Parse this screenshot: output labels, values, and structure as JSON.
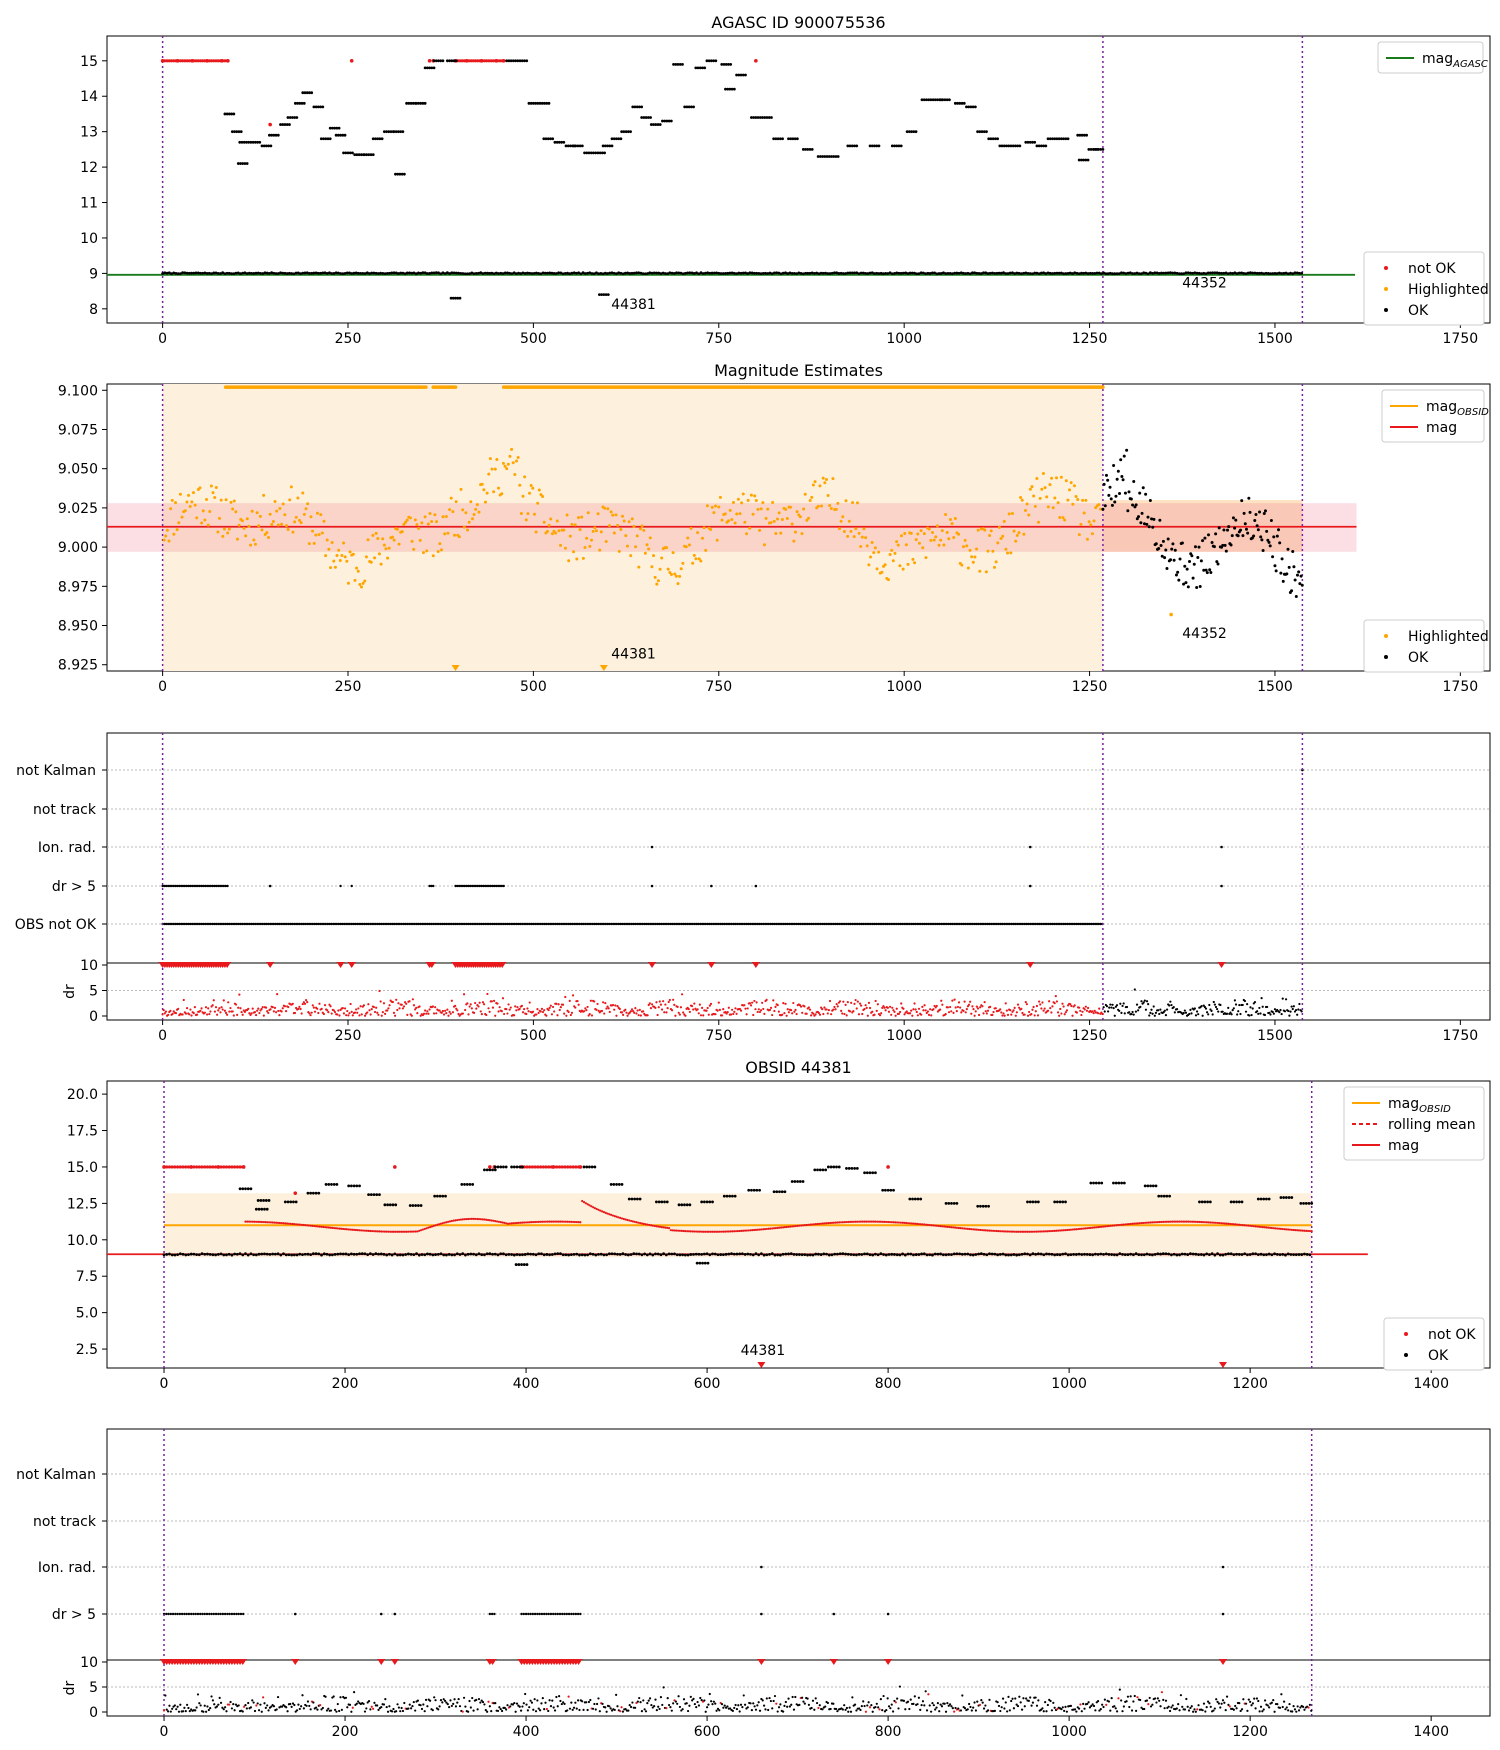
{
  "chart_data": [
    {
      "type": "scatter",
      "title": "AGASC ID 900075536",
      "xlim": [
        -75,
        1790
      ],
      "ylim": [
        7.6,
        15.7
      ],
      "xticks": [
        "0",
        "250",
        "500",
        "750",
        "1000",
        "1250",
        "1500",
        "1750"
      ],
      "yticks": [
        "8",
        "9",
        "10",
        "11",
        "12",
        "13",
        "14",
        "15"
      ],
      "vlines": [
        0,
        1268,
        1537
      ],
      "reference_line": {
        "name": "mag",
        "subscript": "AGASC",
        "value": 8.96,
        "color": "#1a7a1a"
      },
      "series": [
        {
          "name": "not OK",
          "color": "#e8191c",
          "points": [
            [
              0,
              15
            ],
            [
              20,
              15
            ],
            [
              40,
              15
            ],
            [
              60,
              15
            ],
            [
              80,
              15
            ],
            [
              88,
              15
            ],
            [
              145,
              13.2
            ],
            [
              255,
              15
            ],
            [
              360,
              15
            ],
            [
              365,
              15
            ],
            [
              395,
              15
            ],
            [
              410,
              15
            ],
            [
              430,
              15
            ],
            [
              450,
              15
            ],
            [
              460,
              15
            ],
            [
              800,
              15
            ]
          ]
        },
        {
          "name": "Highlighted",
          "color": "#ffa500",
          "points": []
        },
        {
          "name": "OK",
          "color": "#000000",
          "segments": [
            [
              0,
              1268,
              9.01
            ],
            [
              1268,
              1537,
              9.01
            ]
          ],
          "points": [
            [
              90,
              13.5
            ],
            [
              100,
              13.0
            ],
            [
              110,
              12.7
            ],
            [
              125,
              12.7
            ],
            [
              140,
              12.6
            ],
            [
              150,
              12.9
            ],
            [
              165,
              13.2
            ],
            [
              175,
              13.4
            ],
            [
              185,
              13.8
            ],
            [
              195,
              14.1
            ],
            [
              210,
              13.7
            ],
            [
              220,
              12.8
            ],
            [
              232,
              13.1
            ],
            [
              240,
              12.9
            ],
            [
              250,
              12.4
            ],
            [
              265,
              12.35
            ],
            [
              278,
              12.35
            ],
            [
              290,
              12.8
            ],
            [
              305,
              13.0
            ],
            [
              318,
              13.0
            ],
            [
              335,
              13.8
            ],
            [
              348,
              13.8
            ],
            [
              360,
              14.8
            ],
            [
              372,
              15.0
            ],
            [
              390,
              15.0
            ],
            [
              470,
              15.0
            ],
            [
              485,
              15.0
            ],
            [
              500,
              13.8
            ],
            [
              515,
              13.8
            ],
            [
              520,
              12.8
            ],
            [
              535,
              12.7
            ],
            [
              550,
              12.6
            ],
            [
              560,
              12.6
            ],
            [
              575,
              12.4
            ],
            [
              590,
              12.4
            ],
            [
              600,
              12.6
            ],
            [
              612,
              12.8
            ],
            [
              625,
              13.0
            ],
            [
              640,
              13.7
            ],
            [
              652,
              13.4
            ],
            [
              665,
              13.2
            ],
            [
              680,
              13.3
            ],
            [
              695,
              14.9
            ],
            [
              710,
              13.7
            ],
            [
              725,
              14.8
            ],
            [
              740,
              15.0
            ],
            [
              760,
              14.9
            ],
            [
              765,
              14.2
            ],
            [
              780,
              14.6
            ],
            [
              800,
              13.4
            ],
            [
              815,
              13.4
            ],
            [
              830,
              12.8
            ],
            [
              850,
              12.8
            ],
            [
              870,
              12.5
            ],
            [
              890,
              12.3
            ],
            [
              905,
              12.3
            ],
            [
              930,
              12.6
            ],
            [
              960,
              12.6
            ],
            [
              990,
              12.6
            ],
            [
              1010,
              13.0
            ],
            [
              1030,
              13.9
            ],
            [
              1045,
              13.9
            ],
            [
              1055,
              13.9
            ],
            [
              1075,
              13.8
            ],
            [
              1090,
              13.7
            ],
            [
              1105,
              13.0
            ],
            [
              1120,
              12.8
            ],
            [
              1135,
              12.6
            ],
            [
              1150,
              12.6
            ],
            [
              1170,
              12.7
            ],
            [
              1185,
              12.6
            ],
            [
              1200,
              12.8
            ],
            [
              1215,
              12.8
            ],
            [
              1240,
              12.9
            ],
            [
              1255,
              12.5
            ],
            [
              1262,
              12.5
            ],
            [
              395,
              8.3
            ],
            [
              595,
              8.4
            ],
            [
              108,
              12.1
            ],
            [
              320,
              11.8
            ],
            [
              1242,
              12.2
            ]
          ]
        }
      ],
      "annotations": [
        {
          "x": 605,
          "y": 8.0,
          "text": "44381"
        },
        {
          "x": 1375,
          "y": 8.6,
          "text": "44352"
        }
      ],
      "legends": [
        {
          "entries": [
            "mag"
          ],
          "placement": "upper right"
        },
        {
          "entries": [
            "not OK",
            "Highlighted",
            "OK"
          ],
          "placement": "lower right"
        }
      ]
    },
    {
      "type": "scatter",
      "title": "Magnitude Estimates",
      "xlim": [
        -75,
        1790
      ],
      "ylim": [
        8.921,
        9.104
      ],
      "xticks": [
        "0",
        "250",
        "500",
        "750",
        "1000",
        "1250",
        "1500",
        "1750"
      ],
      "yticks": [
        "8.925",
        "8.950",
        "8.975",
        "9.000",
        "9.025",
        "9.050",
        "9.075",
        "9.100"
      ],
      "vlines": [
        0,
        1268,
        1537
      ],
      "mag_line": {
        "name": "mag",
        "value": 9.013,
        "band": [
          8.997,
          9.028
        ],
        "xrange": [
          -75,
          1610
        ]
      },
      "obsid_band": {
        "name": "mag",
        "subscript": "OBSID",
        "xrange": [
          0,
          1268
        ],
        "obs2_band": [
          8.997,
          9.03
        ]
      },
      "series": [
        {
          "name": "Highlighted",
          "color": "#ffa500",
          "xrange": [
            0,
            1268
          ],
          "pinned_top": [
            [
              85,
              355
            ],
            [
              365,
              395
            ],
            [
              460,
              1268
            ]
          ]
        },
        {
          "name": "OK",
          "color": "#000000",
          "xrange": [
            1268,
            1537
          ]
        }
      ],
      "markers": [
        {
          "x": 395,
          "y": 8.921,
          "color": "#ffa500"
        },
        {
          "x": 595,
          "y": 8.921,
          "color": "#ffa500"
        }
      ],
      "outlier": [
        1360,
        8.957
      ],
      "annotations": [
        {
          "x": 605,
          "y": 8.929,
          "text": "44381"
        },
        {
          "x": 1375,
          "y": 8.942,
          "text": "44352"
        }
      ],
      "legends": [
        {
          "entries": [
            "mag",
            "mag"
          ],
          "placement": "upper right"
        },
        {
          "entries": [
            "Highlighted",
            "OK"
          ],
          "placement": "lower right"
        }
      ]
    },
    {
      "type": "scatter",
      "xlim": [
        -75,
        1790
      ],
      "xticks": [
        "0",
        "250",
        "500",
        "750",
        "1000",
        "1250",
        "1500",
        "1750"
      ],
      "vlines": [
        0,
        1268,
        1537
      ],
      "flag_rows": [
        "not Kalman",
        "not track",
        "Ion. rad.",
        "dr > 5",
        "OBS not OK"
      ],
      "flag_ranges": {
        "dr > 5": [
          [
            0,
            88
          ],
          [
            240,
            240
          ],
          [
            255,
            255
          ],
          [
            360,
            365
          ],
          [
            395,
            460
          ]
        ],
        "OBS not OK": [
          [
            0,
            1268
          ]
        ]
      },
      "flag_points": {
        "not Kalman": [
          1537
        ],
        "Ion. rad.": [
          660,
          1170,
          1428
        ],
        "dr > 5": [
          145,
          660,
          740,
          800,
          1170,
          1428
        ]
      },
      "dr_panel": {
        "ylabel": "dr",
        "yticks": [
          "0",
          "5",
          "10"
        ],
        "ylim": [
          0,
          10
        ],
        "red_to": 1268,
        "cap": 10
      }
    },
    {
      "type": "scatter",
      "title": "OBSID 44381",
      "xlim": [
        -63,
        1465
      ],
      "ylim": [
        1.2,
        20.9
      ],
      "xticks": [
        "0",
        "200",
        "400",
        "600",
        "800",
        "1000",
        "1200",
        "1400"
      ],
      "yticks": [
        "2.5",
        "5.0",
        "7.5",
        "10.0",
        "12.5",
        "15.0",
        "17.5",
        "20.0"
      ],
      "vlines": [
        0,
        1268
      ],
      "mag_line": {
        "name": "mag",
        "value": 9.01,
        "xrange": [
          -63,
          1330
        ],
        "color": "#e8191c"
      },
      "obsid_line": {
        "name": "mag",
        "subscript": "OBSID",
        "value": 11.0,
        "band": [
          8.8,
          13.2
        ],
        "color": "#ffa500"
      },
      "rolling_mean": {
        "name": "rolling mean",
        "color": "#e8191c",
        "xrange": [
          90,
          1268
        ],
        "base": 10.9
      },
      "series": [
        {
          "name": "not OK",
          "color": "#e8191c",
          "points": [
            [
              0,
              15
            ],
            [
              30,
              15
            ],
            [
              60,
              15
            ],
            [
              88,
              15
            ],
            [
              145,
              13.2
            ],
            [
              255,
              15
            ],
            [
              360,
              15
            ],
            [
              365,
              15
            ],
            [
              395,
              15
            ],
            [
              430,
              15
            ],
            [
              460,
              15
            ],
            [
              800,
              15
            ]
          ]
        },
        {
          "name": "OK",
          "color": "#000000",
          "points": [
            [
              90,
              13.5
            ],
            [
              110,
              12.7
            ],
            [
              140,
              12.6
            ],
            [
              165,
              13.2
            ],
            [
              185,
              13.8
            ],
            [
              210,
              13.7
            ],
            [
              232,
              13.1
            ],
            [
              250,
              12.4
            ],
            [
              278,
              12.35
            ],
            [
              305,
              13.0
            ],
            [
              335,
              13.8
            ],
            [
              360,
              14.8
            ],
            [
              372,
              15.0
            ],
            [
              390,
              15.0
            ],
            [
              470,
              15.0
            ],
            [
              500,
              13.8
            ],
            [
              520,
              12.8
            ],
            [
              550,
              12.6
            ],
            [
              575,
              12.4
            ],
            [
              600,
              12.6
            ],
            [
              625,
              13.0
            ],
            [
              652,
              13.4
            ],
            [
              680,
              13.3
            ],
            [
              700,
              14.0
            ],
            [
              725,
              14.8
            ],
            [
              740,
              15.0
            ],
            [
              760,
              14.9
            ],
            [
              780,
              14.6
            ],
            [
              800,
              13.4
            ],
            [
              830,
              12.8
            ],
            [
              870,
              12.5
            ],
            [
              905,
              12.3
            ],
            [
              960,
              12.6
            ],
            [
              990,
              12.6
            ],
            [
              1030,
              13.9
            ],
            [
              1055,
              13.9
            ],
            [
              1090,
              13.7
            ],
            [
              1105,
              13.0
            ],
            [
              1150,
              12.6
            ],
            [
              1185,
              12.6
            ],
            [
              1215,
              12.8
            ],
            [
              1240,
              12.9
            ],
            [
              1262,
              12.5
            ],
            [
              395,
              8.3
            ],
            [
              595,
              8.4
            ],
            [
              108,
              12.1
            ]
          ]
        }
      ],
      "markers": [
        {
          "x": 660,
          "y": 1.2,
          "color": "#e8191c"
        },
        {
          "x": 1170,
          "y": 1.2,
          "color": "#e8191c"
        }
      ],
      "annotations": [
        {
          "x": 637,
          "y": 2.1,
          "text": "44381"
        }
      ],
      "legends": [
        {
          "entries": [
            "mag",
            "rolling mean",
            "mag"
          ],
          "placement": "upper right"
        },
        {
          "entries": [
            "not OK",
            "OK"
          ],
          "placement": "lower right"
        }
      ]
    },
    {
      "type": "scatter",
      "xlim": [
        -63,
        1465
      ],
      "xticks": [
        "0",
        "200",
        "400",
        "600",
        "800",
        "1000",
        "1200",
        "1400"
      ],
      "vlines": [
        0,
        1268
      ],
      "flag_rows": [
        "not Kalman",
        "not track",
        "Ion. rad.",
        "dr > 5"
      ],
      "flag_ranges": {
        "dr > 5": [
          [
            0,
            88
          ],
          [
            360,
            365
          ],
          [
            395,
            460
          ]
        ]
      },
      "flag_points": {
        "Ion. rad.": [
          660,
          1170
        ],
        "dr > 5": [
          145,
          240,
          255,
          660,
          740,
          800,
          1170
        ]
      },
      "dr_panel": {
        "ylabel": "dr",
        "yticks": [
          "0",
          "5",
          "10"
        ],
        "ylim": [
          0,
          10
        ],
        "red_to": 0,
        "cap": 10
      }
    }
  ]
}
